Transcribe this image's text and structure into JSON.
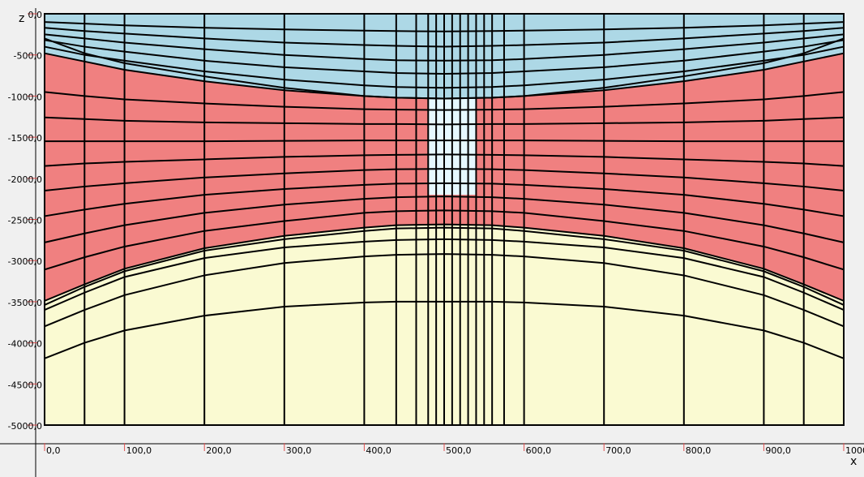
{
  "axes": {
    "x_ticks": [
      {
        "value": 0,
        "label": "0,0"
      },
      {
        "value": 100,
        "label": "100,0"
      },
      {
        "value": 200,
        "label": "200,0"
      },
      {
        "value": 300,
        "label": "300,0"
      },
      {
        "value": 400,
        "label": "400,0"
      },
      {
        "value": 500,
        "label": "500,0"
      },
      {
        "value": 600,
        "label": "600,0"
      },
      {
        "value": 700,
        "label": "700,0"
      },
      {
        "value": 800,
        "label": "800,0"
      },
      {
        "value": 900,
        "label": "900,0"
      },
      {
        "value": 1000,
        "label": "1000"
      }
    ],
    "z_ticks": [
      {
        "value": 0,
        "label": "0,0"
      },
      {
        "value": -500,
        "label": "-500,0"
      },
      {
        "value": -1000,
        "label": "-1000,0"
      },
      {
        "value": -1500,
        "label": "-1500,0"
      },
      {
        "value": -2000,
        "label": "-2000,0"
      },
      {
        "value": -2500,
        "label": "-2500,0"
      },
      {
        "value": -3000,
        "label": "-3000,0"
      },
      {
        "value": -3500,
        "label": "-3500,0"
      },
      {
        "value": -4000,
        "label": "-4000,0"
      },
      {
        "value": -4500,
        "label": "-4500,0"
      },
      {
        "value": -5000,
        "label": "-5000,0"
      }
    ],
    "x_title": "x",
    "z_title": "z",
    "x_range": [
      0,
      1000
    ],
    "z_range": [
      -5000,
      0
    ],
    "tick_color": "#e05050"
  },
  "mesh": {
    "columns_x": [
      0,
      50,
      100,
      200,
      300,
      400,
      440,
      465,
      480,
      490,
      500,
      510,
      520,
      530,
      540,
      550,
      560,
      575,
      600,
      700,
      800,
      900,
      950,
      1000
    ],
    "column_boundaries_x": [
      0,
      50,
      100,
      200,
      300,
      400,
      440,
      465,
      480,
      490,
      500,
      510,
      520,
      530,
      540,
      550,
      560,
      575,
      600,
      700,
      800,
      900,
      950,
      1000
    ],
    "profile_x": [
      0,
      50,
      100,
      200,
      300,
      400,
      440,
      500,
      560,
      600,
      700,
      800,
      900,
      950,
      1000
    ],
    "horizons": [
      {
        "layer": "top",
        "z": [
          0,
          0,
          0,
          0,
          0,
          0,
          0,
          0,
          0,
          0,
          0,
          0,
          0,
          0,
          0
        ]
      },
      {
        "layer": "water",
        "z": [
          -100,
          -120,
          -140,
          -170,
          -190,
          -205,
          -210,
          -215,
          -210,
          -205,
          -190,
          -170,
          -140,
          -120,
          -100
        ]
      },
      {
        "layer": "water",
        "z": [
          -170,
          -210,
          -240,
          -300,
          -350,
          -380,
          -390,
          -400,
          -390,
          -380,
          -350,
          -300,
          -240,
          -210,
          -170
        ]
      },
      {
        "layer": "water",
        "z": [
          -250,
          -300,
          -350,
          -430,
          -500,
          -550,
          -565,
          -570,
          -565,
          -550,
          -500,
          -430,
          -350,
          -300,
          -250
        ]
      },
      {
        "layer": "water",
        "z": [
          -320,
          -400,
          -460,
          -570,
          -650,
          -700,
          -720,
          -730,
          -720,
          -700,
          -650,
          -570,
          -460,
          -400,
          -320
        ]
      },
      {
        "layer": "water",
        "z": [
          -400,
          -500,
          -570,
          -700,
          -800,
          -870,
          -890,
          -900,
          -890,
          -870,
          -800,
          -700,
          -570,
          -500,
          -400
        ]
      },
      {
        "layer": "water",
        "z": [
          -480,
          -580,
          -680,
          -820,
          -930,
          -1000,
          -1020,
          -1030,
          -1020,
          -1000,
          -930,
          -820,
          -680,
          -580,
          -480
        ]
      },
      {
        "layer": "interface",
        "z": [
          -300,
          -480,
          -600,
          -760,
          -900,
          -1000,
          -1020,
          -1030,
          -1020,
          -1000,
          -900,
          -760,
          -600,
          -480,
          -300
        ]
      },
      {
        "layer": "red",
        "z": [
          -950,
          -1000,
          -1040,
          -1090,
          -1130,
          -1160,
          -1165,
          -1170,
          -1165,
          -1160,
          -1130,
          -1090,
          -1040,
          -1000,
          -950
        ]
      },
      {
        "layer": "red",
        "z": [
          -1260,
          -1280,
          -1300,
          -1320,
          -1330,
          -1340,
          -1340,
          -1345,
          -1340,
          -1340,
          -1330,
          -1320,
          -1300,
          -1280,
          -1260
        ]
      },
      {
        "layer": "red",
        "z": [
          -1550,
          -1550,
          -1550,
          -1550,
          -1545,
          -1540,
          -1540,
          -1540,
          -1540,
          -1540,
          -1545,
          -1550,
          -1550,
          -1550,
          -1550
        ]
      },
      {
        "layer": "red",
        "z": [
          -1850,
          -1820,
          -1800,
          -1770,
          -1740,
          -1720,
          -1715,
          -1710,
          -1715,
          -1720,
          -1740,
          -1770,
          -1800,
          -1820,
          -1850
        ]
      },
      {
        "layer": "red",
        "z": [
          -2150,
          -2100,
          -2060,
          -1990,
          -1940,
          -1900,
          -1890,
          -1885,
          -1890,
          -1900,
          -1940,
          -1990,
          -2060,
          -2100,
          -2150
        ]
      },
      {
        "layer": "red",
        "z": [
          -2460,
          -2380,
          -2310,
          -2200,
          -2130,
          -2080,
          -2065,
          -2060,
          -2065,
          -2080,
          -2130,
          -2200,
          -2310,
          -2380,
          -2460
        ]
      },
      {
        "layer": "red",
        "z": [
          -2780,
          -2670,
          -2570,
          -2420,
          -2320,
          -2250,
          -2230,
          -2220,
          -2230,
          -2250,
          -2320,
          -2420,
          -2570,
          -2670,
          -2780
        ]
      },
      {
        "layer": "red",
        "z": [
          -3110,
          -2960,
          -2830,
          -2640,
          -2520,
          -2420,
          -2400,
          -2390,
          -2400,
          -2420,
          -2520,
          -2640,
          -2830,
          -2960,
          -3110
        ]
      },
      {
        "layer": "red",
        "z": [
          -3490,
          -3290,
          -3100,
          -2850,
          -2700,
          -2600,
          -2570,
          -2560,
          -2570,
          -2600,
          -2700,
          -2850,
          -3100,
          -3290,
          -3490
        ]
      },
      {
        "layer": "sediment",
        "z": [
          -3540,
          -3320,
          -3130,
          -2880,
          -2740,
          -2640,
          -2610,
          -2600,
          -2610,
          -2640,
          -2740,
          -2880,
          -3130,
          -3320,
          -3540
        ]
      },
      {
        "layer": "sediment",
        "z": [
          -3600,
          -3390,
          -3200,
          -2970,
          -2840,
          -2770,
          -2750,
          -2740,
          -2750,
          -2770,
          -2840,
          -2970,
          -3200,
          -3390,
          -3600
        ]
      },
      {
        "layer": "sediment",
        "z": [
          -3800,
          -3600,
          -3420,
          -3180,
          -3030,
          -2950,
          -2930,
          -2920,
          -2930,
          -2950,
          -3030,
          -3180,
          -3420,
          -3600,
          -3800
        ]
      },
      {
        "layer": "sediment",
        "z": [
          -4190,
          -4000,
          -3850,
          -3670,
          -3560,
          -3510,
          -3500,
          -3500,
          -3500,
          -3510,
          -3560,
          -3670,
          -3850,
          -4000,
          -4190
        ]
      },
      {
        "layer": "bottom",
        "z": [
          -5000,
          -5000,
          -5000,
          -5000,
          -5000,
          -5000,
          -5000,
          -5000,
          -5000,
          -5000,
          -5000,
          -5000,
          -5000,
          -5000,
          -5000
        ]
      }
    ],
    "conduit": {
      "x_range": [
        480,
        540
      ],
      "z_top": -1030,
      "z_bottom": -2200
    }
  },
  "colors": {
    "water": "#add8e6",
    "red": "#f08080",
    "sediment": "#fafad2",
    "grid": "#000000",
    "conduit": "#e6f8ff"
  }
}
